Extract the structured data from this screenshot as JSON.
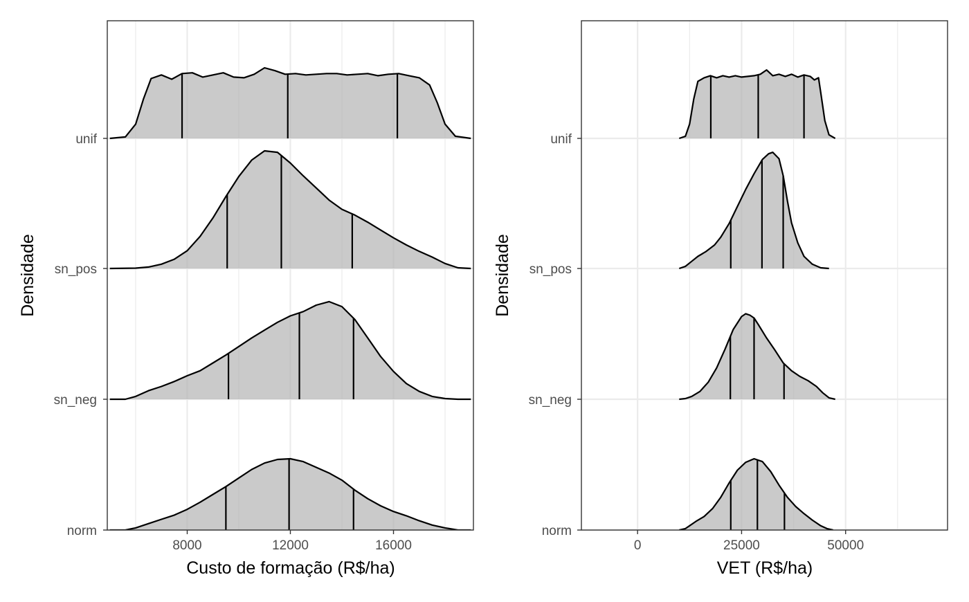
{
  "chart_data": [
    {
      "type": "ridgeline",
      "xlabel": "Custo de formação (R$/ha)",
      "ylabel": "Densidade",
      "xlim": [
        4900,
        19100
      ],
      "x_ticks": [
        8000,
        12000,
        16000
      ],
      "x_minor_ticks": [
        6000,
        10000,
        14000,
        18000
      ],
      "grid": true,
      "categories": [
        "norm",
        "sn_neg",
        "sn_pos",
        "unif"
      ],
      "series": [
        {
          "category": "norm",
          "quantiles": [
            9500,
            11950,
            14450
          ],
          "density": [
            [
              5000,
              0.0
            ],
            [
              5600,
              0.0
            ],
            [
              6000,
              0.3
            ],
            [
              6500,
              0.9
            ],
            [
              7000,
              1.5
            ],
            [
              7500,
              2.1
            ],
            [
              8000,
              2.9
            ],
            [
              8500,
              3.9
            ],
            [
              9000,
              5.0
            ],
            [
              9500,
              6.1
            ],
            [
              10000,
              7.3
            ],
            [
              10500,
              8.5
            ],
            [
              11000,
              9.4
            ],
            [
              11500,
              9.9
            ],
            [
              12000,
              10.0
            ],
            [
              12500,
              9.6
            ],
            [
              13000,
              8.8
            ],
            [
              13500,
              8.0
            ],
            [
              14000,
              7.0
            ],
            [
              14500,
              5.6
            ],
            [
              15000,
              4.4
            ],
            [
              15500,
              3.4
            ],
            [
              16000,
              2.6
            ],
            [
              16500,
              2.0
            ],
            [
              17000,
              1.3
            ],
            [
              17500,
              0.7
            ],
            [
              18000,
              0.3
            ],
            [
              18500,
              0.0
            ],
            [
              19000,
              0.0
            ]
          ]
        },
        {
          "category": "sn_neg",
          "quantiles": [
            9600,
            12350,
            14450
          ],
          "density": [
            [
              5000,
              0.0
            ],
            [
              5600,
              0.0
            ],
            [
              6000,
              0.4
            ],
            [
              6500,
              1.2
            ],
            [
              7000,
              1.8
            ],
            [
              7500,
              2.5
            ],
            [
              8000,
              3.3
            ],
            [
              8500,
              4.0
            ],
            [
              9000,
              5.1
            ],
            [
              9500,
              6.2
            ],
            [
              10000,
              7.4
            ],
            [
              10500,
              8.6
            ],
            [
              11000,
              9.7
            ],
            [
              11500,
              10.8
            ],
            [
              12000,
              11.7
            ],
            [
              12500,
              12.3
            ],
            [
              13000,
              13.2
            ],
            [
              13500,
              13.7
            ],
            [
              14000,
              13.0
            ],
            [
              14500,
              11.2
            ],
            [
              15000,
              8.6
            ],
            [
              15500,
              6.0
            ],
            [
              16000,
              3.9
            ],
            [
              16500,
              2.2
            ],
            [
              17000,
              1.1
            ],
            [
              17500,
              0.4
            ],
            [
              18000,
              0.1
            ],
            [
              18500,
              0.0
            ],
            [
              19000,
              0.0
            ]
          ]
        },
        {
          "category": "sn_pos",
          "quantiles": [
            9550,
            11650,
            14400
          ],
          "density": [
            [
              5000,
              0.0
            ],
            [
              6000,
              0.05
            ],
            [
              6500,
              0.2
            ],
            [
              7000,
              0.6
            ],
            [
              7500,
              1.3
            ],
            [
              8000,
              2.5
            ],
            [
              8500,
              4.5
            ],
            [
              9000,
              7.1
            ],
            [
              9500,
              10.1
            ],
            [
              10000,
              12.9
            ],
            [
              10500,
              15.2
            ],
            [
              11000,
              16.5
            ],
            [
              11500,
              16.3
            ],
            [
              12000,
              14.8
            ],
            [
              12500,
              13.0
            ],
            [
              13000,
              11.3
            ],
            [
              13500,
              9.6
            ],
            [
              14000,
              8.3
            ],
            [
              14500,
              7.5
            ],
            [
              15000,
              6.5
            ],
            [
              15500,
              5.4
            ],
            [
              16000,
              4.3
            ],
            [
              16500,
              3.3
            ],
            [
              17000,
              2.4
            ],
            [
              17500,
              1.6
            ],
            [
              18000,
              0.7
            ],
            [
              18500,
              0.1
            ],
            [
              19000,
              0.0
            ]
          ]
        },
        {
          "category": "unif",
          "quantiles": [
            7800,
            11900,
            16150
          ],
          "density": [
            [
              5000,
              0.0
            ],
            [
              5600,
              0.2
            ],
            [
              6000,
              2.0
            ],
            [
              6300,
              5.5
            ],
            [
              6600,
              8.4
            ],
            [
              7000,
              8.9
            ],
            [
              7400,
              8.3
            ],
            [
              7800,
              9.1
            ],
            [
              8200,
              9.2
            ],
            [
              8600,
              8.6
            ],
            [
              9000,
              8.9
            ],
            [
              9400,
              9.2
            ],
            [
              9800,
              8.6
            ],
            [
              10200,
              8.5
            ],
            [
              10600,
              9.0
            ],
            [
              11000,
              9.9
            ],
            [
              11400,
              9.5
            ],
            [
              11800,
              9.0
            ],
            [
              12200,
              9.1
            ],
            [
              12600,
              8.9
            ],
            [
              13000,
              9.0
            ],
            [
              13400,
              9.1
            ],
            [
              13800,
              9.1
            ],
            [
              14200,
              8.9
            ],
            [
              14600,
              9.0
            ],
            [
              15000,
              9.1
            ],
            [
              15400,
              8.8
            ],
            [
              15800,
              9.0
            ],
            [
              16200,
              9.1
            ],
            [
              16600,
              8.8
            ],
            [
              17000,
              8.5
            ],
            [
              17400,
              7.5
            ],
            [
              17700,
              5.0
            ],
            [
              18000,
              2.0
            ],
            [
              18400,
              0.3
            ],
            [
              19000,
              0.0
            ]
          ]
        }
      ]
    },
    {
      "type": "ridgeline",
      "xlabel": "VET (R$/ha)",
      "ylabel": "Densidade",
      "xlim": [
        -13500,
        74500
      ],
      "x_ticks": [
        0,
        25000,
        50000
      ],
      "x_minor_ticks": [
        12500,
        37500,
        62500
      ],
      "grid": true,
      "categories": [
        "norm",
        "sn_neg",
        "sn_pos",
        "unif"
      ],
      "series": [
        {
          "category": "norm",
          "quantiles": [
            22400,
            28800,
            35300
          ],
          "density": [
            [
              10000,
              0.0
            ],
            [
              11500,
              0.2
            ],
            [
              12500,
              0.6
            ],
            [
              14000,
              1.2
            ],
            [
              16000,
              1.9
            ],
            [
              18000,
              3.0
            ],
            [
              20000,
              4.6
            ],
            [
              22000,
              6.6
            ],
            [
              24000,
              8.4
            ],
            [
              26000,
              9.5
            ],
            [
              28000,
              10.0
            ],
            [
              30000,
              9.6
            ],
            [
              32000,
              8.2
            ],
            [
              34000,
              6.3
            ],
            [
              36000,
              4.6
            ],
            [
              38000,
              3.3
            ],
            [
              40000,
              2.3
            ],
            [
              42000,
              1.4
            ],
            [
              44000,
              0.6
            ],
            [
              45500,
              0.2
            ],
            [
              47000,
              0.0
            ]
          ]
        },
        {
          "category": "sn_neg",
          "quantiles": [
            22300,
            28000,
            35200
          ],
          "density": [
            [
              10000,
              0.0
            ],
            [
              11500,
              0.1
            ],
            [
              13000,
              0.4
            ],
            [
              15000,
              1.1
            ],
            [
              17000,
              2.4
            ],
            [
              19000,
              4.4
            ],
            [
              21000,
              7.0
            ],
            [
              23000,
              9.8
            ],
            [
              25000,
              11.6
            ],
            [
              26000,
              12.0
            ],
            [
              27000,
              11.8
            ],
            [
              28000,
              11.4
            ],
            [
              29000,
              10.5
            ],
            [
              31000,
              8.6
            ],
            [
              33000,
              6.9
            ],
            [
              35000,
              5.1
            ],
            [
              37000,
              4.0
            ],
            [
              39000,
              3.2
            ],
            [
              41000,
              2.6
            ],
            [
              43000,
              1.8
            ],
            [
              44500,
              0.9
            ],
            [
              46000,
              0.2
            ],
            [
              47500,
              0.0
            ]
          ]
        },
        {
          "category": "sn_pos",
          "quantiles": [
            22400,
            29900,
            35000
          ],
          "density": [
            [
              10000,
              0.0
            ],
            [
              11500,
              0.3
            ],
            [
              13000,
              1.0
            ],
            [
              14500,
              1.7
            ],
            [
              16500,
              2.4
            ],
            [
              18500,
              3.3
            ],
            [
              20000,
              4.4
            ],
            [
              22000,
              6.3
            ],
            [
              24000,
              8.7
            ],
            [
              26000,
              11.1
            ],
            [
              28000,
              13.3
            ],
            [
              30000,
              15.3
            ],
            [
              31500,
              16.1
            ],
            [
              32500,
              16.3
            ],
            [
              34000,
              15.4
            ],
            [
              35000,
              13.0
            ],
            [
              36000,
              9.5
            ],
            [
              37000,
              6.4
            ],
            [
              38500,
              3.6
            ],
            [
              40000,
              1.7
            ],
            [
              42000,
              0.6
            ],
            [
              44000,
              0.1
            ],
            [
              46000,
              0.0
            ]
          ]
        },
        {
          "category": "unif",
          "quantiles": [
            17600,
            29000,
            40000
          ],
          "density": [
            [
              10000,
              0.0
            ],
            [
              11500,
              0.3
            ],
            [
              12500,
              2.0
            ],
            [
              13500,
              5.5
            ],
            [
              14500,
              8.0
            ],
            [
              16000,
              8.5
            ],
            [
              17500,
              8.8
            ],
            [
              19000,
              8.5
            ],
            [
              20500,
              8.8
            ],
            [
              22000,
              8.6
            ],
            [
              23500,
              8.8
            ],
            [
              25000,
              8.6
            ],
            [
              26500,
              8.7
            ],
            [
              28000,
              8.8
            ],
            [
              29500,
              9.0
            ],
            [
              31000,
              9.6
            ],
            [
              32500,
              8.8
            ],
            [
              34000,
              9.0
            ],
            [
              35500,
              8.7
            ],
            [
              37000,
              9.0
            ],
            [
              38500,
              8.6
            ],
            [
              40000,
              8.9
            ],
            [
              41500,
              8.7
            ],
            [
              42500,
              8.2
            ],
            [
              43500,
              8.5
            ],
            [
              44000,
              6.5
            ],
            [
              45000,
              2.5
            ],
            [
              46000,
              0.5
            ],
            [
              47500,
              0.0
            ]
          ]
        }
      ]
    }
  ]
}
